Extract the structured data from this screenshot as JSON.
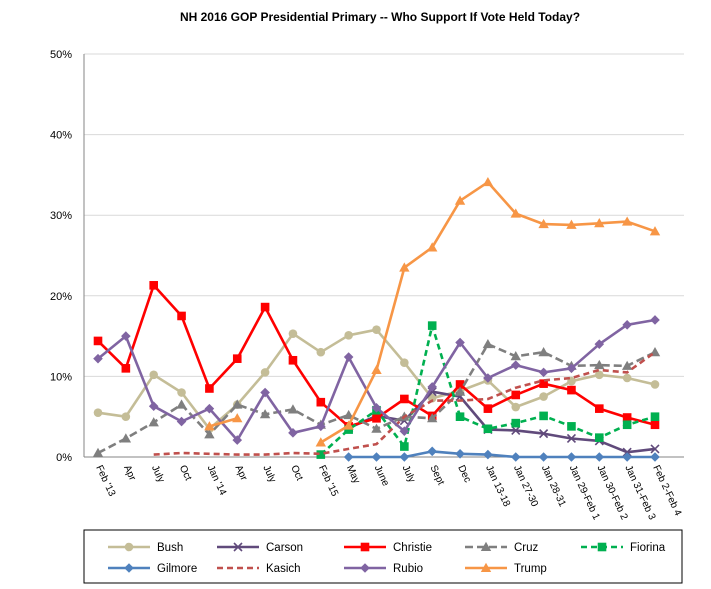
{
  "chart_data": {
    "type": "line",
    "title": "NH 2016 GOP Presidential Primary -- Who Support If Vote Held Today?",
    "xlabel": "",
    "ylabel": "",
    "ylim": [
      0,
      50
    ],
    "yticks": [
      "0%",
      "10%",
      "20%",
      "30%",
      "40%",
      "50%"
    ],
    "grid": true,
    "legend_position": "bottom",
    "categories": [
      "Feb '13",
      "Apr",
      "July",
      "Oct",
      "Jan '14",
      "Apr",
      "July",
      "Oct",
      "Feb '15",
      "May",
      "June",
      "July",
      "Sept",
      "Dec",
      "Jan 13-18",
      "Jan 27-30",
      "Jan 28-31",
      "Jan 29-Feb 1",
      "Jan 30-Feb 2",
      "Jan 31-Feb 3",
      "Feb 2-Feb 4"
    ],
    "series": [
      {
        "name": "Bush",
        "color": "#c4bd97",
        "dash": "solid",
        "marker": "circle",
        "values": [
          5.5,
          5,
          10.2,
          8,
          3.5,
          6.5,
          10.5,
          15.3,
          13,
          15.1,
          15.8,
          11.7,
          7.3,
          8.2,
          9.5,
          6.2,
          7.5,
          9.4,
          10.2,
          9.8,
          9
        ]
      },
      {
        "name": "Carson",
        "color": "#604a7b",
        "dash": "solid",
        "marker": "x",
        "values": [
          null,
          null,
          null,
          null,
          null,
          null,
          null,
          null,
          null,
          3.6,
          5.1,
          4.5,
          8.1,
          7.5,
          3.4,
          3.3,
          2.9,
          2.3,
          2,
          0.6,
          1
        ]
      },
      {
        "name": "Christie",
        "color": "#ff0000",
        "dash": "solid",
        "marker": "square",
        "values": [
          14.4,
          11,
          21.3,
          17.5,
          8.5,
          12.2,
          18.6,
          12,
          6.8,
          3.8,
          4.8,
          7.2,
          5.1,
          9,
          6,
          7.7,
          9.1,
          8.3,
          6,
          4.9,
          4
        ]
      },
      {
        "name": "Cruz",
        "color": "#7f7f7f",
        "dash": "longdash",
        "marker": "triangle",
        "values": [
          0.5,
          2.3,
          4.3,
          6.5,
          2.8,
          6.5,
          5.3,
          5.9,
          4,
          5.2,
          3.5,
          5,
          4.8,
          8.1,
          14,
          12.5,
          13,
          11.3,
          11.4,
          11.3,
          13
        ]
      },
      {
        "name": "Fiorina",
        "color": "#00b050",
        "dash": "dash",
        "marker": "square",
        "values": [
          null,
          null,
          null,
          null,
          null,
          null,
          null,
          null,
          0.3,
          3.4,
          5.8,
          1.3,
          16.3,
          5,
          3.5,
          4.2,
          5.1,
          3.8,
          2.4,
          4,
          5
        ]
      },
      {
        "name": "Gilmore",
        "color": "#4f81bd",
        "dash": "solid",
        "marker": "diamond",
        "values": [
          null,
          null,
          null,
          null,
          null,
          null,
          null,
          null,
          null,
          0,
          0,
          0,
          0.7,
          0.4,
          0.3,
          0,
          0,
          0,
          0,
          0,
          0
        ]
      },
      {
        "name": "Kasich",
        "color": "#c0504d",
        "dash": "dash",
        "marker": "none",
        "values": [
          null,
          null,
          0.3,
          0.5,
          0.4,
          0.3,
          0.3,
          0.5,
          0.4,
          1,
          1.6,
          5,
          7,
          7,
          7.2,
          8.6,
          9.5,
          9.8,
          10.8,
          10.5,
          13
        ]
      },
      {
        "name": "Rubio",
        "color": "#8064a2",
        "dash": "solid",
        "marker": "diamond",
        "values": [
          12.2,
          15,
          6.3,
          4.4,
          6,
          2.1,
          8,
          3,
          3.8,
          12.4,
          6.1,
          3.2,
          8.7,
          14.2,
          9.8,
          11.4,
          10.5,
          11,
          14,
          16.4,
          17
        ]
      },
      {
        "name": "Trump",
        "color": "#f79646",
        "dash": "solid",
        "marker": "triangle",
        "values": [
          null,
          null,
          null,
          null,
          3.8,
          4.8,
          null,
          null,
          1.8,
          3.9,
          10.8,
          23.5,
          26,
          31.8,
          34.1,
          30.2,
          28.9,
          28.8,
          29,
          29.2,
          28
        ]
      }
    ],
    "legend_rows": [
      [
        "Bush",
        "Carson",
        "Christie",
        "Cruz",
        "Fiorina"
      ],
      [
        "Gilmore",
        "Kasich",
        "Rubio",
        "Trump"
      ]
    ]
  }
}
